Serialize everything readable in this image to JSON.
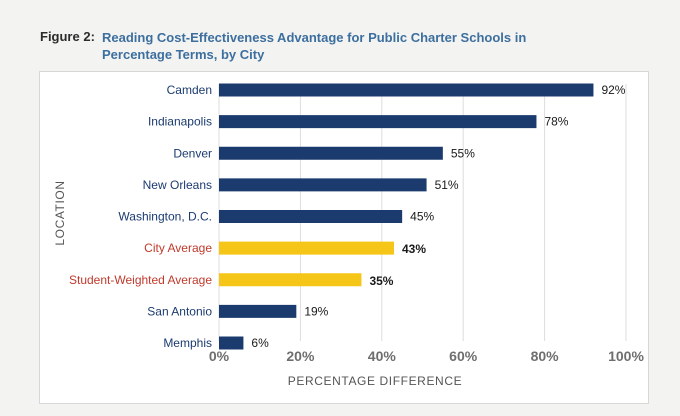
{
  "figure": {
    "label": "Figure 2:",
    "title": "Reading Cost-Effectiveness Advantage for Public Charter Schools in Percentage Terms, by City"
  },
  "colors": {
    "city_bar": "#1b3b6f",
    "average_bar": "#f5c518",
    "city_label": "#1b3b6f",
    "average_label": "#c0392b",
    "gridline": "#dddddd"
  },
  "chart_data": {
    "type": "bar",
    "orientation": "horizontal",
    "title": "Reading Cost-Effectiveness Advantage for Public Charter Schools in Percentage Terms, by City",
    "xlabel": "PERCENTAGE DIFFERENCE",
    "ylabel": "LOCATION",
    "xlim": [
      0,
      100
    ],
    "xticks": [
      0,
      20,
      40,
      60,
      80,
      100
    ],
    "xtick_labels": [
      "0%",
      "20%",
      "40%",
      "60%",
      "80%",
      "100%"
    ],
    "grid": true,
    "categories": [
      "Camden",
      "Indianapolis",
      "Denver",
      "New Orleans",
      "Washington, D.C.",
      "City Average",
      "Student-Weighted Average",
      "San Antonio",
      "Memphis"
    ],
    "values": [
      92,
      78,
      55,
      51,
      45,
      43,
      35,
      19,
      6
    ],
    "value_labels": [
      "92%",
      "78%",
      "55%",
      "51%",
      "45%",
      "43%",
      "35%",
      "19%",
      "6%"
    ],
    "highlight": [
      false,
      false,
      false,
      false,
      false,
      true,
      true,
      false,
      false
    ]
  }
}
